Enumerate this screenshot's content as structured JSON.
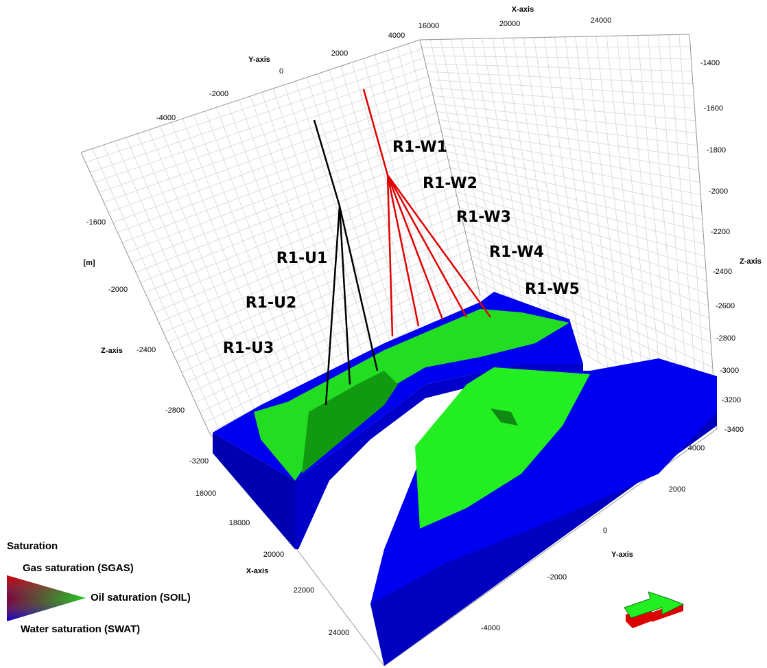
{
  "axes": {
    "x_top": {
      "label": "X-axis",
      "ticks": [
        16000,
        20000,
        24000
      ]
    },
    "y_top": {
      "label": "Y-axis",
      "ticks": [
        4000,
        2000,
        0,
        -2000,
        -4000
      ]
    },
    "z_right": {
      "label": "Z-axis",
      "ticks": [
        -1400,
        -1600,
        -1800,
        -2000,
        -2200,
        -2400,
        -2600,
        -2800,
        -3000,
        -3200,
        -3400
      ]
    },
    "z_left": {
      "label": "Z-axis",
      "unit": "[m]",
      "ticks": [
        -1600,
        -2000,
        -2400,
        -2800,
        -3200
      ]
    },
    "x_bottom": {
      "label": "X-axis",
      "ticks": [
        16000,
        18000,
        20000,
        22000,
        24000
      ]
    },
    "y_bottom": {
      "label": "Y-axis",
      "ticks": [
        4000,
        2000,
        0,
        -2000,
        -4000
      ]
    }
  },
  "wells": [
    {
      "label": "R1-W1"
    },
    {
      "label": "R1-W2"
    },
    {
      "label": "R1-W3"
    },
    {
      "label": "R1-W4"
    },
    {
      "label": "R1-W5"
    },
    {
      "label": "R1-U1"
    },
    {
      "label": "R1-U2"
    },
    {
      "label": "R1-U3"
    }
  ],
  "legend": {
    "title": "Saturation",
    "items": [
      "Gas saturation (SGAS)",
      "Oil saturation (SOIL)",
      "Water saturation (SWAT)"
    ]
  }
}
